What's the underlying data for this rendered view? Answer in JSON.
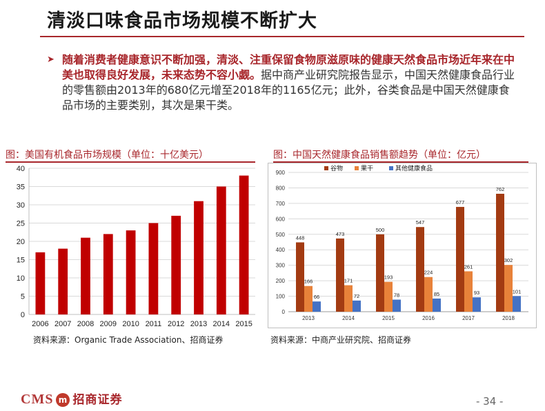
{
  "slide": {
    "title": "清淡口味食品市场规模不断扩大",
    "bullet_highlight": "随着消费者健康意识不断加强，清淡、注重保留食物原滋原味的健康天然食品市场近年来在中美也取得良好发展，未来态势不容小觑。",
    "bullet_body": "据中商产业研究院报告显示，中国天然健康食品行业的零售额由2013年的680亿元增至2018年的1165亿元；此外，谷类食品是中国天然健康食品市场的主要类别，其次是果干类。",
    "page_number": "- 34 -"
  },
  "footer": {
    "logo_latin": "CMS",
    "logo_mark": "m",
    "logo_cn": "招商证券"
  },
  "colors": {
    "brand_red": "#a8262b",
    "bar_red": "#c00000",
    "grain": "#a33b12",
    "dried_fruit": "#e8823a",
    "other": "#4472c4"
  },
  "chart_data": [
    {
      "type": "bar",
      "title": "图：美国有机食品市场规模（单位：十亿美元）",
      "source": "资料来源：Organic Trade Association、招商证券",
      "categories": [
        "2006",
        "2007",
        "2008",
        "2009",
        "2010",
        "2011",
        "2012",
        "2013",
        "2014",
        "2015"
      ],
      "values": [
        17,
        18,
        21,
        22,
        23,
        25,
        27,
        31,
        35,
        38
      ],
      "ylim": [
        0,
        40
      ],
      "yticks": [
        0,
        5,
        10,
        15,
        20,
        25,
        30,
        35,
        40
      ],
      "xlabel": "",
      "ylabel": "",
      "grid": true
    },
    {
      "type": "bar",
      "title": "图：中国天然健康食品销售额趋势（单位：亿元）",
      "source": "资料来源：中商产业研究院、招商证券",
      "categories": [
        "2013",
        "2014",
        "2015",
        "2016",
        "2017",
        "2018"
      ],
      "series": [
        {
          "name": "谷物",
          "values": [
            448,
            473,
            500,
            547,
            677,
            762
          ]
        },
        {
          "name": "果干",
          "values": [
            166,
            171,
            193,
            224,
            261,
            302
          ]
        },
        {
          "name": "其他健康食品",
          "values": [
            66,
            72,
            78,
            85,
            93,
            101
          ]
        }
      ],
      "ylim": [
        0,
        900
      ],
      "yticks": [
        0,
        100,
        200,
        300,
        400,
        500,
        600,
        700,
        800,
        900
      ],
      "legend": "top",
      "grid": true
    }
  ]
}
